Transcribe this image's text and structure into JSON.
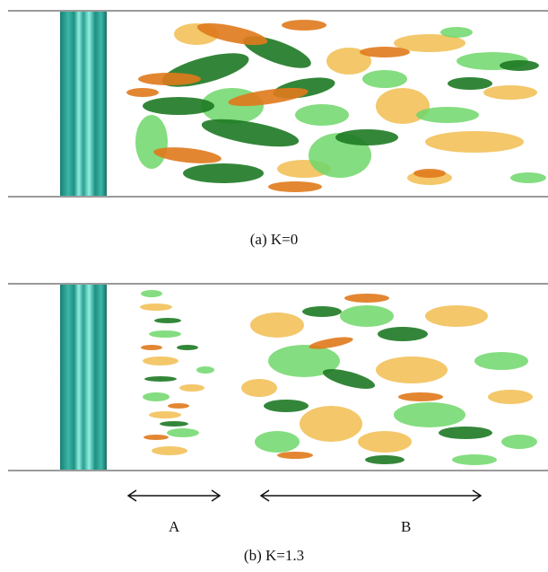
{
  "figure": {
    "panels": [
      {
        "caption": "(a) K=0"
      },
      {
        "caption": "(b) K=1.3"
      }
    ],
    "annotations": {
      "region_a": "A",
      "region_b": "B"
    },
    "colors": {
      "wall": "#9a9a9a",
      "cylinder_dark": "#1f8f83",
      "cylinder_light": "#7fe6d6",
      "iso_light_green": "#6fd86a",
      "iso_dark_green": "#1e7a24",
      "iso_orange": "#e07a1c",
      "iso_yellow": "#f2c15a"
    }
  }
}
